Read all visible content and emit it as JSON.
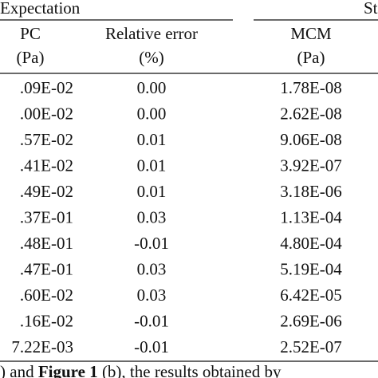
{
  "header": {
    "group_left": "Expectation",
    "group_right": "St"
  },
  "columns": [
    {
      "label": "PC",
      "unit": "(Pa)"
    },
    {
      "label": "Relative error",
      "unit": "(%)"
    },
    {
      "label": "MCM",
      "unit": "(Pa)"
    }
  ],
  "table": {
    "rows": [
      [
        ".09E-02",
        "0.00",
        "1.78E-08"
      ],
      [
        ".00E-02",
        "0.00",
        "2.62E-08"
      ],
      [
        ".57E-02",
        "0.01",
        "9.06E-08"
      ],
      [
        ".41E-02",
        "0.01",
        "3.92E-07"
      ],
      [
        ".49E-02",
        "0.01",
        "3.18E-06"
      ],
      [
        ".37E-01",
        "0.03",
        "1.13E-04"
      ],
      [
        ".48E-01",
        "-0.01",
        "4.80E-04"
      ],
      [
        ".47E-01",
        "0.03",
        "5.19E-04"
      ],
      [
        ".60E-02",
        "0.03",
        "6.42E-05"
      ],
      [
        ".16E-02",
        "-0.01",
        "2.69E-06"
      ],
      [
        "7.22E-03",
        "-0.01",
        "2.52E-07"
      ]
    ]
  },
  "footer": {
    "before": ") and",
    "bold": "Figure 1",
    "after": "(b), the results obtained by"
  }
}
